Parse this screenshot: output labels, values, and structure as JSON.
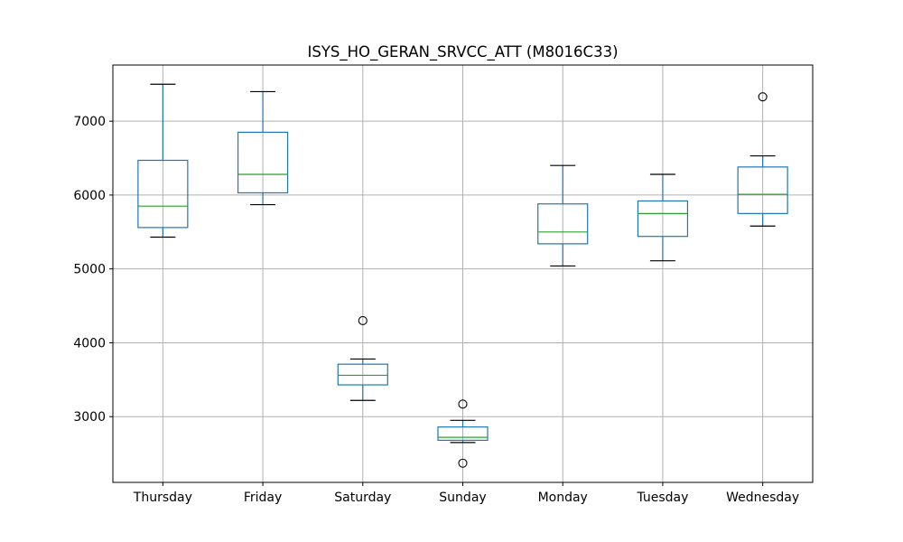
{
  "chart_data": {
    "type": "box",
    "title": "ISYS_HO_GERAN_SRVCC_ATT (M8016C33)",
    "xlabel": "",
    "ylabel": "",
    "ylim": [
      2110,
      7760
    ],
    "yticks": [
      3000,
      4000,
      5000,
      6000,
      7000
    ],
    "grid": true,
    "legend": "none",
    "colors": {
      "box": "#1f77b4",
      "median": "#2ca02c",
      "whisker_cap": "#000000",
      "grid": "#b0b0b0",
      "axes": "#000000"
    },
    "categories": [
      "Thursday",
      "Friday",
      "Saturday",
      "Sunday",
      "Monday",
      "Tuesday",
      "Wednesday"
    ],
    "boxes": [
      {
        "category": "Thursday",
        "whisker_low": 5430,
        "q1": 5560,
        "median": 5850,
        "q3": 6470,
        "whisker_high": 7500,
        "outliers": []
      },
      {
        "category": "Friday",
        "whisker_low": 5870,
        "q1": 6030,
        "median": 6280,
        "q3": 6850,
        "whisker_high": 7400,
        "outliers": []
      },
      {
        "category": "Saturday",
        "whisker_low": 3220,
        "q1": 3430,
        "median": 3560,
        "q3": 3710,
        "whisker_high": 3780,
        "outliers": [
          4300
        ]
      },
      {
        "category": "Sunday",
        "whisker_low": 2650,
        "q1": 2680,
        "median": 2720,
        "q3": 2860,
        "whisker_high": 2950,
        "outliers": [
          3170,
          2370
        ]
      },
      {
        "category": "Monday",
        "whisker_low": 5040,
        "q1": 5340,
        "median": 5500,
        "q3": 5880,
        "whisker_high": 6400,
        "outliers": []
      },
      {
        "category": "Tuesday",
        "whisker_low": 5110,
        "q1": 5440,
        "median": 5750,
        "q3": 5920,
        "whisker_high": 6280,
        "outliers": []
      },
      {
        "category": "Wednesday",
        "whisker_low": 5580,
        "q1": 5750,
        "median": 6010,
        "q3": 6380,
        "whisker_high": 6530,
        "outliers": [
          7330
        ]
      }
    ]
  }
}
